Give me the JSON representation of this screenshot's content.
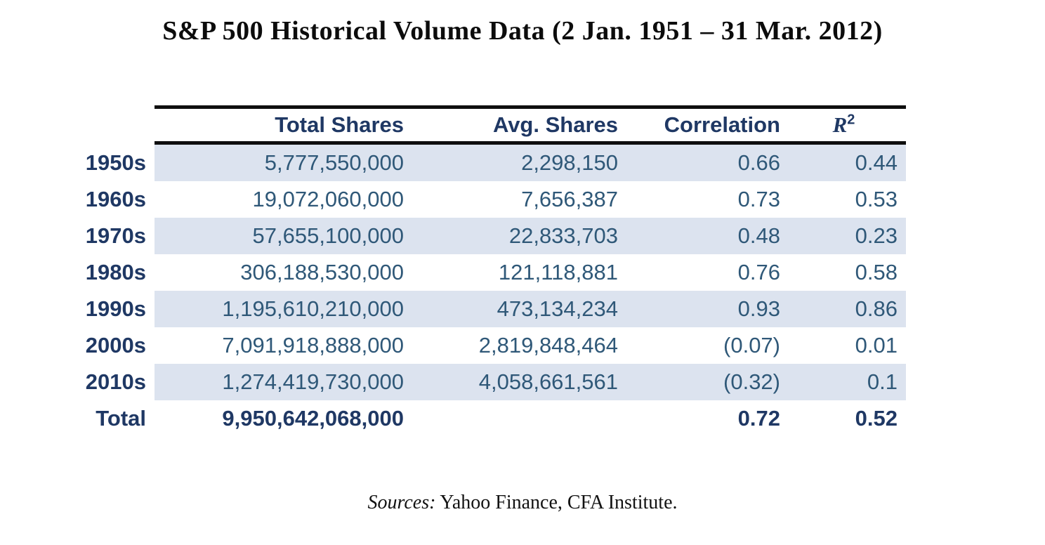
{
  "page": {
    "title": "S&P 500 Historical Volume Data (2 Jan. 1951 – 31 Mar. 2012)",
    "source_prefix": "Sources:",
    "source_text": " Yahoo Finance, CFA Institute."
  },
  "chart_data": {
    "type": "table",
    "title": "S&P 500 Historical Volume Data (2 Jan. 1951 – 31 Mar. 2012)",
    "columns": [
      "",
      "Total Shares",
      "Avg. Shares",
      "Correlation",
      "R²"
    ],
    "header": {
      "total_shares": "Total Shares",
      "avg_shares": "Avg. Shares",
      "correlation": "Correlation",
      "r2_base": "R",
      "r2_sup": "2"
    },
    "rows": [
      {
        "label": "1950s",
        "total_shares": "5,777,550,000",
        "avg_shares": "2,298,150",
        "correlation": "0.66",
        "r2": "0.44"
      },
      {
        "label": "1960s",
        "total_shares": "19,072,060,000",
        "avg_shares": "7,656,387",
        "correlation": "0.73",
        "r2": "0.53"
      },
      {
        "label": "1970s",
        "total_shares": "57,655,100,000",
        "avg_shares": "22,833,703",
        "correlation": "0.48",
        "r2": "0.23"
      },
      {
        "label": "1980s",
        "total_shares": "306,188,530,000",
        "avg_shares": "121,118,881",
        "correlation": "0.76",
        "r2": "0.58"
      },
      {
        "label": "1990s",
        "total_shares": "1,195,610,210,000",
        "avg_shares": "473,134,234",
        "correlation": "0.93",
        "r2": "0.86"
      },
      {
        "label": "2000s",
        "total_shares": "7,091,918,888,000",
        "avg_shares": "2,819,848,464",
        "correlation": "(0.07)",
        "r2": "0.01"
      },
      {
        "label": "2010s",
        "total_shares": "1,274,419,730,000",
        "avg_shares": "4,058,661,561",
        "correlation": "(0.32)",
        "r2": "0.1"
      },
      {
        "label": "Total",
        "total_shares": "9,950,642,068,000",
        "avg_shares": "",
        "correlation": "0.72",
        "r2": "0.52"
      }
    ],
    "source_note": "Sources: Yahoo Finance, CFA Institute."
  },
  "colors": {
    "header_navy": "#1f3864",
    "value_blue": "#2f5878",
    "row_shade": "#dce3ef",
    "rule_black": "#0e0e0e",
    "title_black": "#0c0c0c"
  }
}
